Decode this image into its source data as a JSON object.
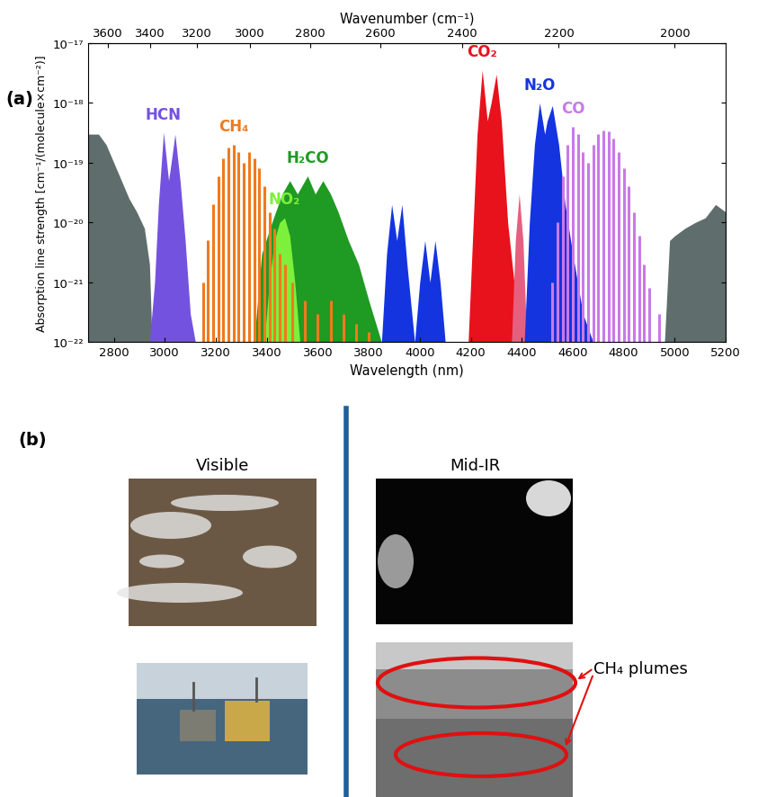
{
  "chart_data": {
    "type": "area",
    "panel_label": "(a)",
    "xlabel": "Wavelength (nm)",
    "ylabel": "Absorption line strength [cm⁻¹/(molecule×cm⁻²)]",
    "x2label": "Wavenumber (cm⁻¹)",
    "xlim": [
      2700,
      5200
    ],
    "xticks": [
      2800,
      3000,
      3200,
      3400,
      3600,
      3800,
      4000,
      4200,
      4400,
      4600,
      4800,
      5000,
      5200
    ],
    "x2ticks": [
      3600,
      3400,
      3200,
      3000,
      2800,
      2600,
      2400,
      2200,
      2000
    ],
    "ylim": [
      1e-22,
      1e-17
    ],
    "yticks": [
      {
        "value": 1e-22,
        "label": "10⁻²²"
      },
      {
        "value": 1e-21,
        "label": "10⁻²¹"
      },
      {
        "value": 1e-20,
        "label": "10⁻²⁰"
      },
      {
        "value": 1e-19,
        "label": "10⁻¹⁹"
      },
      {
        "value": 1e-18,
        "label": "10⁻¹⁸"
      },
      {
        "value": 1e-17,
        "label": "10⁻¹⁷"
      }
    ],
    "log": "y",
    "grid": false,
    "series": [
      {
        "color": "#5f6e6c",
        "type": "area",
        "x": [
          2700,
          2740,
          2770,
          2800,
          2830,
          2860,
          2890,
          2920,
          2940,
          2950
        ],
        "values": [
          3e-19,
          3e-19,
          2e-19,
          1e-19,
          5e-20,
          2.5e-20,
          1.5e-20,
          8e-21,
          2e-21,
          1e-22
        ]
      },
      {
        "color": "#5f6e6c",
        "type": "area",
        "x": [
          4960,
          4980,
          5000,
          5040,
          5080,
          5120,
          5160,
          5200
        ],
        "values": [
          1e-22,
          5e-21,
          6e-21,
          8e-21,
          1e-20,
          1.2e-20,
          2e-20,
          1.5e-20
        ]
      },
      {
        "name": "HCN",
        "color": "#7452e0",
        "type": "area",
        "x": [
          2940,
          2960,
          2975,
          2995,
          3015,
          3025,
          3040,
          3060,
          3080,
          3100,
          3120
        ],
        "values": [
          1e-22,
          1e-21,
          2e-20,
          3.2e-19,
          5e-20,
          1e-19,
          3e-19,
          5e-20,
          5e-21,
          3e-22,
          1e-22
        ]
      },
      {
        "name": "CH₄",
        "color": "#f07a1e",
        "type": "lines",
        "x": [
          3150,
          3170,
          3190,
          3210,
          3230,
          3250,
          3270,
          3290,
          3310,
          3330,
          3350,
          3370,
          3390,
          3410,
          3430,
          3450,
          3470,
          3500,
          3550,
          3600,
          3650,
          3700,
          3750,
          3800
        ],
        "values": [
          1e-21,
          5e-21,
          2e-20,
          6e-20,
          1.2e-19,
          1.8e-19,
          2e-19,
          1.5e-19,
          1e-19,
          1.5e-19,
          1.2e-19,
          8e-20,
          4e-20,
          1.5e-20,
          8e-21,
          3e-21,
          2e-21,
          1e-21,
          5e-22,
          3e-22,
          5e-22,
          3e-22,
          2e-22,
          1.5e-22
        ]
      },
      {
        "name": "H₂CO",
        "color": "#1f9a22",
        "type": "area",
        "x": [
          3350,
          3380,
          3420,
          3460,
          3490,
          3520,
          3560,
          3590,
          3620,
          3650,
          3680,
          3720,
          3760,
          3800,
          3850
        ],
        "values": [
          1e-22,
          3e-21,
          1e-20,
          3e-20,
          5e-20,
          3e-20,
          6e-20,
          3e-20,
          5e-20,
          3e-20,
          1.5e-20,
          5e-21,
          2e-21,
          5e-22,
          1e-22
        ]
      },
      {
        "name": "NO₂",
        "color": "#7df03c",
        "type": "area",
        "x": [
          3390,
          3410,
          3430,
          3450,
          3470,
          3490,
          3510,
          3530
        ],
        "values": [
          1e-22,
          1e-21,
          5e-21,
          1e-20,
          1.2e-20,
          6e-21,
          1e-21,
          1e-22
        ]
      },
      {
        "color": "#1434e0",
        "type": "area",
        "x": [
          3850,
          3870,
          3890,
          3910,
          3930,
          3950,
          3980,
          4000,
          4020,
          4040,
          4060,
          4080,
          4100,
          4120
        ],
        "values": [
          1e-22,
          3e-21,
          2e-20,
          5e-21,
          2e-20,
          2e-21,
          1e-22,
          1e-21,
          5e-21,
          1e-21,
          5e-21,
          1e-21,
          1e-22,
          1e-22
        ]
      },
      {
        "name": "CO₂",
        "color": "#e8121c",
        "type": "area",
        "x": [
          4190,
          4210,
          4225,
          4245,
          4265,
          4280,
          4300,
          4320,
          4345,
          4370,
          4390,
          4410
        ],
        "values": [
          1e-22,
          1e-20,
          3e-19,
          3.5e-18,
          5e-19,
          1e-18,
          3e-18,
          5e-19,
          1e-20,
          1e-21,
          2e-22,
          1e-22
        ]
      },
      {
        "color": "#e5607e",
        "type": "area",
        "x": [
          4360,
          4375,
          4390,
          4405,
          4420
        ],
        "values": [
          1e-22,
          5e-21,
          3e-20,
          5e-21,
          1e-22
        ]
      },
      {
        "name": "N₂O",
        "color": "#1434e0",
        "type": "area",
        "x": [
          4410,
          4430,
          4450,
          4470,
          4490,
          4500,
          4520,
          4545,
          4570,
          4600,
          4640,
          4680
        ],
        "values": [
          1e-22,
          1e-20,
          2e-19,
          1e-18,
          3e-19,
          5e-19,
          9e-19,
          2e-19,
          2e-20,
          3e-21,
          3e-22,
          1e-22
        ]
      },
      {
        "name": "CO",
        "color": "#c87ae6",
        "type": "lines",
        "x": [
          4520,
          4540,
          4560,
          4580,
          4600,
          4620,
          4640,
          4660,
          4680,
          4700,
          4720,
          4740,
          4760,
          4780,
          4800,
          4820,
          4840,
          4860,
          4880,
          4900,
          4940,
          4980
        ],
        "values": [
          1e-21,
          1e-20,
          6e-20,
          2e-19,
          4e-19,
          3e-19,
          1.5e-19,
          1e-19,
          2e-19,
          3e-19,
          3.5e-19,
          3.3e-19,
          2.5e-19,
          1.5e-19,
          8e-20,
          4e-20,
          1.5e-20,
          6e-21,
          2e-21,
          8e-22,
          3e-22,
          1e-22
        ]
      }
    ]
  },
  "panel_b": {
    "label": "(b)",
    "columns": [
      "Visible",
      "Mid-IR"
    ],
    "annotation": "CH₄ plumes"
  }
}
